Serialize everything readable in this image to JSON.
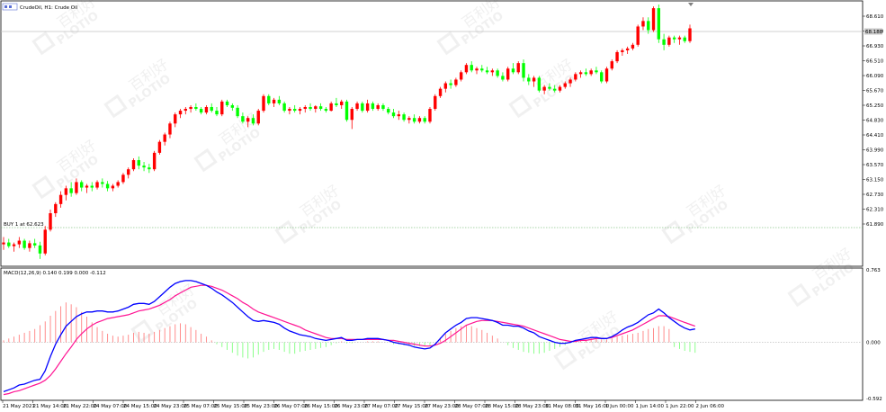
{
  "window": {
    "title": "CrudeOil, H1:  Crude Oil",
    "buy_marker": "BUY 1 at 62.623",
    "macd_label": "MACD(12,26,9) 0.140 0.199 0.000 -0.112"
  },
  "watermark": {
    "brand": "PLOTIO",
    "text": "百利好"
  },
  "price_axis": {
    "ticks": [
      "68.610",
      "67.350",
      "66.930",
      "66.510",
      "66.090",
      "65.670",
      "65.250",
      "64.830",
      "64.410",
      "63.990",
      "63.570",
      "63.150",
      "62.730",
      "62.310",
      "61.890"
    ],
    "current_price": "68.188",
    "buy_price": 62.623,
    "partial_top_tick": "68.190"
  },
  "macd_axis": {
    "ticks": [
      "0.763",
      "0.000",
      "-0.592"
    ]
  },
  "time_axis": {
    "labels": [
      "21 May 2021",
      "21 May 14:00",
      "21 May 22:00",
      "24 May 07:00",
      "24 May 15:00",
      "24 May 23:00",
      "25 May 07:00",
      "25 May 15:00",
      "25 May 23:00",
      "26 May 07:00",
      "26 May 15:00",
      "26 May 23:00",
      "27 May 07:00",
      "27 May 15:00",
      "27 May 23:00",
      "28 May 07:00",
      "28 May 15:00",
      "28 May 23:00",
      "31 May 08:00",
      "31 May 16:00",
      "1 Jun 00:00",
      "1 Jun 14:00",
      "1 Jun 22:00",
      "2 Jun 06:00"
    ]
  },
  "colors": {
    "bull": "#ff0000",
    "bear": "#00ff00",
    "macd_line": "#0000ff",
    "signal_line": "#ff1493",
    "hist_pos": "#ff8080",
    "hist_neg": "#80ff80",
    "buy_line": "#55aa55"
  },
  "chart_data": {
    "type": "candlestick",
    "title": "CrudeOil, H1:  Crude Oil",
    "ylim": [
      61.7,
      68.85
    ],
    "macd_ylim": [
      -0.592,
      0.763
    ],
    "candles": [
      [
        62.25,
        62.45,
        62.1,
        62.3
      ],
      [
        62.3,
        62.4,
        62.15,
        62.2
      ],
      [
        62.2,
        62.3,
        62.05,
        62.25
      ],
      [
        62.25,
        62.45,
        62.15,
        62.35
      ],
      [
        62.35,
        62.4,
        62.1,
        62.15
      ],
      [
        62.15,
        62.35,
        62.05,
        62.28
      ],
      [
        62.28,
        62.4,
        62.15,
        62.22
      ],
      [
        62.22,
        62.32,
        61.85,
        62.0
      ],
      [
        62.0,
        62.75,
        61.95,
        62.65
      ],
      [
        62.65,
        63.2,
        62.6,
        63.1
      ],
      [
        63.1,
        63.4,
        63.0,
        63.35
      ],
      [
        63.35,
        63.7,
        63.25,
        63.6
      ],
      [
        63.6,
        63.85,
        63.45,
        63.78
      ],
      [
        63.78,
        63.95,
        63.55,
        63.65
      ],
      [
        63.65,
        64.05,
        63.6,
        63.95
      ],
      [
        63.95,
        64.0,
        63.7,
        63.8
      ],
      [
        63.8,
        63.9,
        63.65,
        63.85
      ],
      [
        63.85,
        63.95,
        63.7,
        63.8
      ],
      [
        63.8,
        64.0,
        63.75,
        63.95
      ],
      [
        63.95,
        64.05,
        63.8,
        63.9
      ],
      [
        63.9,
        63.98,
        63.7,
        63.78
      ],
      [
        63.78,
        63.9,
        63.7,
        63.85
      ],
      [
        63.85,
        64.0,
        63.8,
        63.95
      ],
      [
        63.95,
        64.2,
        63.9,
        64.15
      ],
      [
        64.15,
        64.35,
        64.05,
        64.3
      ],
      [
        64.3,
        64.6,
        64.25,
        64.55
      ],
      [
        64.55,
        64.65,
        64.3,
        64.4
      ],
      [
        64.4,
        64.5,
        64.25,
        64.35
      ],
      [
        64.35,
        64.45,
        64.2,
        64.3
      ],
      [
        64.3,
        64.8,
        64.25,
        64.75
      ],
      [
        64.75,
        65.1,
        64.7,
        65.05
      ],
      [
        65.05,
        65.3,
        64.95,
        65.25
      ],
      [
        65.25,
        65.6,
        65.15,
        65.55
      ],
      [
        65.55,
        65.85,
        65.45,
        65.8
      ],
      [
        65.8,
        65.95,
        65.7,
        65.9
      ],
      [
        65.9,
        66.0,
        65.8,
        65.95
      ],
      [
        65.95,
        66.05,
        65.85,
        66.0
      ],
      [
        66.0,
        66.1,
        65.9,
        65.95
      ],
      [
        65.95,
        66.0,
        65.8,
        65.85
      ],
      [
        65.85,
        66.05,
        65.8,
        66.0
      ],
      [
        66.0,
        66.1,
        65.85,
        65.9
      ],
      [
        65.9,
        66.0,
        65.75,
        65.8
      ],
      [
        65.8,
        66.2,
        65.75,
        66.15
      ],
      [
        66.15,
        66.2,
        66.0,
        66.05
      ],
      [
        66.05,
        66.1,
        65.9,
        65.98
      ],
      [
        65.98,
        66.05,
        65.7,
        65.75
      ],
      [
        65.75,
        65.85,
        65.55,
        65.6
      ],
      [
        65.6,
        65.75,
        65.45,
        65.7
      ],
      [
        65.7,
        65.8,
        65.5,
        65.55
      ],
      [
        65.55,
        65.95,
        65.5,
        65.9
      ],
      [
        65.9,
        66.35,
        65.85,
        66.3
      ],
      [
        66.3,
        66.35,
        66.05,
        66.1
      ],
      [
        66.1,
        66.25,
        66.0,
        66.2
      ],
      [
        66.2,
        66.3,
        66.05,
        66.1
      ],
      [
        66.1,
        66.15,
        65.85,
        65.9
      ],
      [
        65.9,
        66.0,
        65.8,
        65.95
      ],
      [
        65.95,
        66.05,
        65.85,
        65.9
      ],
      [
        65.9,
        66.0,
        65.8,
        65.95
      ],
      [
        65.95,
        66.05,
        65.85,
        66.0
      ],
      [
        66.0,
        66.1,
        65.9,
        65.95
      ],
      [
        65.95,
        66.05,
        65.85,
        66.02
      ],
      [
        66.02,
        66.1,
        65.9,
        65.95
      ],
      [
        65.95,
        66.0,
        65.85,
        65.9
      ],
      [
        65.9,
        66.15,
        65.88,
        66.1
      ],
      [
        66.1,
        66.25,
        66.0,
        66.05
      ],
      [
        66.05,
        66.2,
        65.95,
        66.15
      ],
      [
        66.15,
        66.2,
        65.6,
        65.65
      ],
      [
        65.65,
        66.0,
        65.4,
        65.95
      ],
      [
        65.95,
        66.15,
        65.9,
        66.1
      ],
      [
        66.1,
        66.15,
        65.85,
        65.9
      ],
      [
        65.9,
        66.2,
        65.85,
        66.1
      ],
      [
        66.1,
        66.15,
        65.9,
        65.95
      ],
      [
        65.95,
        66.1,
        65.9,
        66.05
      ],
      [
        66.05,
        66.1,
        65.9,
        65.95
      ],
      [
        65.95,
        66.0,
        65.8,
        65.85
      ],
      [
        65.85,
        65.95,
        65.7,
        65.75
      ],
      [
        65.75,
        65.9,
        65.65,
        65.8
      ],
      [
        65.8,
        65.85,
        65.6,
        65.65
      ],
      [
        65.65,
        65.75,
        65.55,
        65.7
      ],
      [
        65.7,
        65.8,
        65.55,
        65.6
      ],
      [
        65.6,
        65.75,
        65.55,
        65.7
      ],
      [
        65.7,
        65.75,
        65.55,
        65.6
      ],
      [
        65.6,
        66.0,
        65.55,
        65.95
      ],
      [
        65.95,
        66.35,
        65.9,
        66.3
      ],
      [
        66.3,
        66.55,
        66.25,
        66.5
      ],
      [
        66.5,
        66.7,
        66.4,
        66.65
      ],
      [
        66.65,
        66.75,
        66.5,
        66.6
      ],
      [
        66.6,
        66.8,
        66.55,
        66.75
      ],
      [
        66.75,
        67.0,
        66.7,
        66.95
      ],
      [
        66.95,
        67.2,
        66.9,
        67.15
      ],
      [
        67.15,
        67.25,
        66.95,
        67.0
      ],
      [
        67.0,
        67.1,
        66.9,
        67.05
      ],
      [
        67.05,
        67.15,
        66.95,
        67.0
      ],
      [
        67.0,
        67.1,
        66.9,
        66.95
      ],
      [
        66.95,
        67.05,
        66.85,
        67.0
      ],
      [
        67.0,
        67.05,
        66.8,
        66.85
      ],
      [
        66.85,
        66.95,
        66.7,
        66.75
      ],
      [
        66.75,
        67.1,
        66.7,
        67.05
      ],
      [
        67.05,
        67.2,
        66.9,
        66.95
      ],
      [
        66.95,
        67.25,
        66.9,
        67.2
      ],
      [
        67.2,
        67.3,
        66.7,
        66.8
      ],
      [
        66.8,
        66.9,
        66.6,
        66.7
      ],
      [
        66.7,
        66.85,
        66.55,
        66.8
      ],
      [
        66.8,
        66.85,
        66.4,
        66.45
      ],
      [
        66.45,
        66.6,
        66.35,
        66.55
      ],
      [
        66.55,
        66.65,
        66.45,
        66.5
      ],
      [
        66.5,
        66.6,
        66.4,
        66.45
      ],
      [
        66.45,
        66.6,
        66.4,
        66.55
      ],
      [
        66.55,
        66.7,
        66.5,
        66.65
      ],
      [
        66.65,
        66.8,
        66.55,
        66.75
      ],
      [
        66.75,
        66.95,
        66.7,
        66.9
      ],
      [
        66.9,
        67.0,
        66.8,
        66.95
      ],
      [
        66.95,
        67.05,
        66.85,
        66.9
      ],
      [
        66.9,
        67.05,
        66.85,
        67.0
      ],
      [
        67.0,
        67.1,
        66.9,
        66.95
      ],
      [
        66.95,
        67.0,
        66.65,
        66.7
      ],
      [
        66.7,
        67.1,
        66.65,
        67.05
      ],
      [
        67.05,
        67.3,
        67.0,
        67.25
      ],
      [
        67.25,
        67.55,
        67.2,
        67.5
      ],
      [
        67.5,
        67.6,
        67.4,
        67.55
      ],
      [
        67.55,
        67.65,
        67.45,
        67.6
      ],
      [
        67.6,
        67.75,
        67.55,
        67.7
      ],
      [
        67.7,
        68.25,
        67.65,
        68.2
      ],
      [
        68.2,
        68.45,
        68.1,
        68.35
      ],
      [
        68.35,
        68.45,
        68.0,
        68.1
      ],
      [
        68.1,
        68.75,
        68.05,
        68.7
      ],
      [
        68.7,
        68.8,
        67.75,
        67.85
      ],
      [
        67.85,
        68.0,
        67.55,
        67.7
      ],
      [
        67.7,
        67.95,
        67.65,
        67.9
      ],
      [
        67.9,
        67.95,
        67.75,
        67.85
      ],
      [
        67.85,
        67.95,
        67.7,
        67.9
      ],
      [
        67.9,
        67.95,
        67.75,
        67.8
      ],
      [
        67.8,
        68.25,
        67.75,
        68.15
      ]
    ],
    "macd": [
      -0.52,
      -0.5,
      -0.48,
      -0.45,
      -0.44,
      -0.42,
      -0.4,
      -0.39,
      -0.3,
      -0.15,
      -0.02,
      0.08,
      0.17,
      0.22,
      0.27,
      0.3,
      0.32,
      0.32,
      0.33,
      0.33,
      0.32,
      0.32,
      0.33,
      0.35,
      0.37,
      0.4,
      0.41,
      0.41,
      0.4,
      0.43,
      0.48,
      0.53,
      0.58,
      0.62,
      0.64,
      0.65,
      0.65,
      0.64,
      0.62,
      0.6,
      0.57,
      0.53,
      0.5,
      0.46,
      0.42,
      0.37,
      0.32,
      0.27,
      0.23,
      0.22,
      0.23,
      0.22,
      0.21,
      0.19,
      0.15,
      0.12,
      0.1,
      0.08,
      0.07,
      0.06,
      0.04,
      0.03,
      0.02,
      0.03,
      0.04,
      0.05,
      0.02,
      0.02,
      0.03,
      0.03,
      0.04,
      0.04,
      0.04,
      0.03,
      0.02,
      0.0,
      -0.01,
      -0.02,
      -0.03,
      -0.05,
      -0.06,
      -0.07,
      -0.06,
      -0.02,
      0.04,
      0.1,
      0.14,
      0.18,
      0.21,
      0.25,
      0.26,
      0.26,
      0.25,
      0.24,
      0.23,
      0.21,
      0.18,
      0.18,
      0.17,
      0.17,
      0.15,
      0.12,
      0.1,
      0.06,
      0.04,
      0.02,
      0.0,
      -0.01,
      -0.01,
      0.0,
      0.02,
      0.03,
      0.04,
      0.05,
      0.05,
      0.04,
      0.04,
      0.06,
      0.09,
      0.13,
      0.16,
      0.18,
      0.21,
      0.25,
      0.29,
      0.31,
      0.35,
      0.31,
      0.26,
      0.22,
      0.18,
      0.15,
      0.13,
      0.14
    ],
    "signal": [
      -0.55,
      -0.54,
      -0.52,
      -0.51,
      -0.49,
      -0.47,
      -0.45,
      -0.43,
      -0.4,
      -0.35,
      -0.28,
      -0.2,
      -0.12,
      -0.05,
      0.03,
      0.09,
      0.14,
      0.18,
      0.21,
      0.23,
      0.25,
      0.26,
      0.27,
      0.28,
      0.29,
      0.31,
      0.33,
      0.34,
      0.35,
      0.37,
      0.39,
      0.42,
      0.45,
      0.49,
      0.52,
      0.55,
      0.58,
      0.59,
      0.6,
      0.6,
      0.59,
      0.57,
      0.55,
      0.52,
      0.49,
      0.46,
      0.42,
      0.39,
      0.35,
      0.32,
      0.3,
      0.28,
      0.26,
      0.24,
      0.22,
      0.2,
      0.18,
      0.16,
      0.13,
      0.11,
      0.09,
      0.07,
      0.05,
      0.04,
      0.04,
      0.04,
      0.03,
      0.03,
      0.03,
      0.03,
      0.03,
      0.03,
      0.03,
      0.03,
      0.02,
      0.02,
      0.01,
      0.0,
      -0.01,
      -0.02,
      -0.03,
      -0.04,
      -0.04,
      -0.03,
      -0.01,
      0.02,
      0.06,
      0.1,
      0.14,
      0.18,
      0.2,
      0.22,
      0.23,
      0.23,
      0.23,
      0.22,
      0.21,
      0.2,
      0.19,
      0.18,
      0.17,
      0.15,
      0.13,
      0.11,
      0.09,
      0.07,
      0.05,
      0.03,
      0.02,
      0.01,
      0.01,
      0.02,
      0.02,
      0.03,
      0.04,
      0.04,
      0.04,
      0.05,
      0.07,
      0.09,
      0.11,
      0.13,
      0.16,
      0.19,
      0.22,
      0.25,
      0.28,
      0.28,
      0.27,
      0.25,
      0.23,
      0.21,
      0.19,
      0.17
    ],
    "histogram": [
      0.02,
      0.04,
      0.06,
      0.08,
      0.1,
      0.12,
      0.14,
      0.18,
      0.22,
      0.28,
      0.33,
      0.38,
      0.42,
      0.4,
      0.37,
      0.32,
      0.27,
      0.21,
      0.16,
      0.12,
      0.09,
      0.07,
      0.06,
      0.07,
      0.08,
      0.1,
      0.11,
      0.1,
      0.09,
      0.11,
      0.13,
      0.15,
      0.17,
      0.19,
      0.2,
      0.19,
      0.16,
      0.13,
      0.09,
      0.06,
      0.02,
      -0.02,
      -0.05,
      -0.08,
      -0.11,
      -0.14,
      -0.16,
      -0.17,
      -0.16,
      -0.13,
      -0.1,
      -0.08,
      -0.07,
      -0.08,
      -0.1,
      -0.12,
      -0.12,
      -0.1,
      -0.09,
      -0.08,
      -0.07,
      -0.06,
      -0.05,
      -0.03,
      -0.01,
      0.01,
      -0.01,
      -0.01,
      0.0,
      0.0,
      0.01,
      0.01,
      0.01,
      0.0,
      0.0,
      -0.02,
      -0.02,
      -0.03,
      -0.03,
      -0.04,
      -0.04,
      -0.04,
      -0.03,
      0.0,
      0.05,
      0.09,
      0.12,
      0.15,
      0.17,
      0.18,
      0.17,
      0.15,
      0.13,
      0.1,
      0.07,
      0.04,
      0.0,
      -0.03,
      -0.06,
      -0.08,
      -0.1,
      -0.11,
      -0.12,
      -0.12,
      -0.11,
      -0.09,
      -0.07,
      -0.05,
      -0.03,
      -0.01,
      0.01,
      0.02,
      0.03,
      0.04,
      0.04,
      0.03,
      0.03,
      0.04,
      0.06,
      0.07,
      0.08,
      0.09,
      0.1,
      0.12,
      0.14,
      0.15,
      0.17,
      0.17,
      0.14,
      -0.05,
      -0.07,
      -0.09,
      -0.1,
      -0.11
    ]
  }
}
